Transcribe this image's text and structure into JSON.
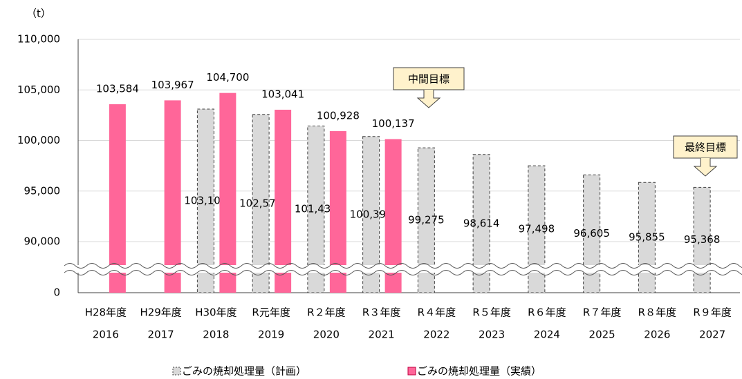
{
  "chart_data": {
    "type": "bar",
    "y_unit": "（t）",
    "categories": [
      "H28年度",
      "H29年度",
      "H30年度",
      "R元年度",
      "R２年度",
      "R３年度",
      "R４年度",
      "R５年度",
      "R６年度",
      "R７年度",
      "R８年度",
      "R９年度"
    ],
    "years": [
      "2016",
      "2017",
      "2018",
      "2019",
      "2020",
      "2021",
      "2022",
      "2023",
      "2024",
      "2025",
      "2026",
      "2027"
    ],
    "series": [
      {
        "name": "ごみの焼却処理量（計画）",
        "color": "#d9d9d9",
        "dashed": true,
        "values": [
          null,
          null,
          103102,
          102573,
          101436,
          100395,
          99275,
          98614,
          97498,
          96605,
          95855,
          95368
        ],
        "value_labels": [
          null,
          null,
          "103,102",
          "102,573",
          "101,436",
          "100,395",
          "99,275",
          "98,614",
          "97,498",
          "96,605",
          "95,855",
          "95,368"
        ]
      },
      {
        "name": "ごみの焼却処理量（実績）",
        "color": "#ff6699",
        "dashed": false,
        "values": [
          103584,
          103967,
          104700,
          103041,
          100928,
          100137,
          null,
          null,
          null,
          null,
          null,
          null
        ],
        "value_labels": [
          "103,584",
          "103,967",
          "104,700",
          "103,041",
          "100,928",
          "100,137",
          null,
          null,
          null,
          null,
          null,
          null
        ]
      }
    ],
    "ylim": [
      0,
      110000
    ],
    "axis_break": [
      0,
      90000
    ],
    "yticks": [
      {
        "value": 0,
        "label": "0"
      },
      {
        "value": 90000,
        "label": "90,000"
      },
      {
        "value": 95000,
        "label": "95,000"
      },
      {
        "value": 100000,
        "label": "100,000"
      },
      {
        "value": 105000,
        "label": "105,000"
      },
      {
        "value": 110000,
        "label": "110,000"
      }
    ],
    "grid": true,
    "annotations": [
      "中間目標",
      "最終目標"
    ]
  }
}
